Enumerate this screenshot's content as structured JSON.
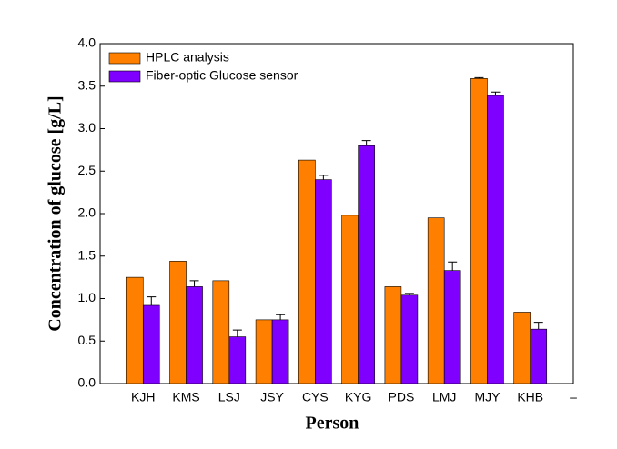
{
  "chart_data": {
    "type": "bar",
    "xlabel": "Person",
    "ylabel": "Concentration of glucose [g/L]",
    "categories": [
      "KJH",
      "KMS",
      "LSJ",
      "JSY",
      "CYS",
      "KYG",
      "PDS",
      "LMJ",
      "MJY",
      "KHB",
      "–"
    ],
    "series": [
      {
        "name": "HPLC analysis",
        "color": "#ff8000",
        "values": [
          1.25,
          1.44,
          1.21,
          0.75,
          2.63,
          1.98,
          1.14,
          1.95,
          3.59,
          0.84,
          null
        ],
        "errors": [
          null,
          null,
          null,
          null,
          null,
          null,
          null,
          null,
          0.01,
          null,
          null
        ]
      },
      {
        "name": "Fiber-optic Glucose sensor",
        "color": "#8000ff",
        "values": [
          0.92,
          1.14,
          0.55,
          0.75,
          2.4,
          2.8,
          1.04,
          1.33,
          3.39,
          0.64,
          null
        ],
        "errors": [
          0.1,
          0.07,
          0.08,
          0.06,
          0.05,
          0.06,
          0.02,
          0.1,
          0.04,
          0.08,
          null
        ]
      }
    ],
    "ylim": [
      0,
      4
    ],
    "yticks": [
      {
        "value": 0,
        "label": "0.0"
      },
      0.5,
      {
        "value": 1,
        "label": "1.0"
      },
      1.5,
      {
        "value": 2,
        "label": "2.0"
      },
      2.5,
      {
        "value": 3,
        "label": "3.0"
      },
      3.5,
      {
        "value": 4,
        "label": "4.0"
      }
    ],
    "legend": "upper left"
  }
}
